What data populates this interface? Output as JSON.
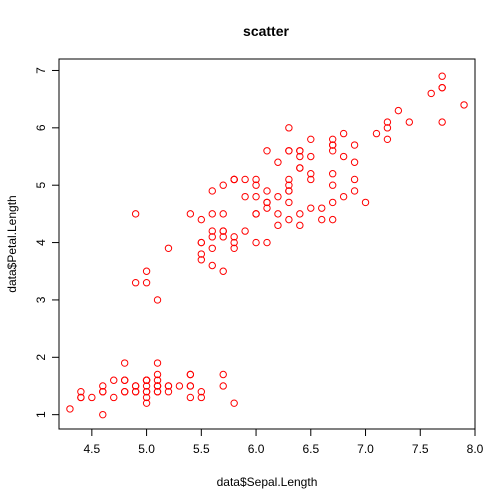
{
  "chart_data": {
    "type": "scatter",
    "title": "scatter",
    "xlabel": "data$Sepal.Length",
    "ylabel": "data$Petal.Length",
    "xlim": [
      4.2,
      8.0
    ],
    "ylim": [
      0.75,
      7.2
    ],
    "xticks": [
      4.5,
      5.0,
      5.5,
      6.0,
      6.5,
      7.0,
      7.5,
      8.0
    ],
    "xtick_labels": [
      "4.5",
      "5.0",
      "5.5",
      "6.0",
      "6.5",
      "7.0",
      "7.5",
      "8.0"
    ],
    "yticks": [
      1,
      2,
      3,
      4,
      5,
      6,
      7
    ],
    "ytick_labels": [
      "1",
      "2",
      "3",
      "4",
      "5",
      "6",
      "7"
    ],
    "grid": false,
    "legend": "none",
    "point_color": "#ff0000",
    "series": [
      {
        "x": [
          5.1,
          4.9,
          4.7,
          4.6,
          5.0,
          5.4,
          4.6,
          5.0,
          4.4,
          4.9,
          5.4,
          4.8,
          4.8,
          4.3,
          5.8,
          5.7,
          5.4,
          5.1,
          5.7,
          5.1,
          5.4,
          5.1,
          4.6,
          5.1,
          4.8,
          5.0,
          5.0,
          5.2,
          5.2,
          4.7,
          4.8,
          5.4,
          5.2,
          5.5,
          4.9,
          5.0,
          5.5,
          4.9,
          4.4,
          5.1,
          5.0,
          4.5,
          4.4,
          5.0,
          5.1,
          4.8,
          5.1,
          4.6,
          5.3,
          5.0,
          7.0,
          6.4,
          6.9,
          5.5,
          6.5,
          5.7,
          6.3,
          4.9,
          6.6,
          5.2,
          5.0,
          5.9,
          6.0,
          6.1,
          5.6,
          6.7,
          5.6,
          5.8,
          6.2,
          5.6,
          5.9,
          6.1,
          6.3,
          6.1,
          6.4,
          6.6,
          6.8,
          6.7,
          6.0,
          5.7,
          5.5,
          5.5,
          5.8,
          6.0,
          5.4,
          6.0,
          6.7,
          6.3,
          5.6,
          5.5,
          5.5,
          6.1,
          5.8,
          5.0,
          5.6,
          5.7,
          5.7,
          6.2,
          5.1,
          5.7,
          6.3,
          5.8,
          7.1,
          6.3,
          6.5,
          7.6,
          4.9,
          7.3,
          6.7,
          7.2,
          6.5,
          6.4,
          6.8,
          5.7,
          5.8,
          6.4,
          6.5,
          7.7,
          7.7,
          6.0,
          6.9,
          5.6,
          7.7,
          6.3,
          6.7,
          7.2,
          6.2,
          6.1,
          6.4,
          7.2,
          7.4,
          7.9,
          6.4,
          6.3,
          6.1,
          7.7,
          6.3,
          6.4,
          6.0,
          6.9,
          6.7,
          6.9,
          5.8,
          6.8,
          6.7,
          6.7,
          6.3,
          6.5,
          6.2,
          5.9
        ],
        "y": [
          1.4,
          1.4,
          1.3,
          1.5,
          1.4,
          1.7,
          1.4,
          1.5,
          1.4,
          1.5,
          1.5,
          1.6,
          1.4,
          1.1,
          1.2,
          1.5,
          1.3,
          1.4,
          1.7,
          1.5,
          1.7,
          1.5,
          1.0,
          1.7,
          1.9,
          1.6,
          1.6,
          1.5,
          1.4,
          1.6,
          1.6,
          1.5,
          1.5,
          1.4,
          1.5,
          1.2,
          1.3,
          1.4,
          1.3,
          1.5,
          1.3,
          1.3,
          1.3,
          1.6,
          1.9,
          1.4,
          1.6,
          1.4,
          1.5,
          1.4,
          4.7,
          4.5,
          4.9,
          4.0,
          4.6,
          4.5,
          4.7,
          3.3,
          4.6,
          3.9,
          3.5,
          4.2,
          4.0,
          4.7,
          3.6,
          4.4,
          4.5,
          4.1,
          4.5,
          3.9,
          4.8,
          4.0,
          4.9,
          4.7,
          4.3,
          4.4,
          4.8,
          5.0,
          4.5,
          3.5,
          3.8,
          3.7,
          3.9,
          5.1,
          4.5,
          4.5,
          4.7,
          4.4,
          4.1,
          4.0,
          4.4,
          4.6,
          4.0,
          3.3,
          4.2,
          4.2,
          4.2,
          4.3,
          3.0,
          4.1,
          6.0,
          5.1,
          5.9,
          5.6,
          5.8,
          6.6,
          4.5,
          6.3,
          5.8,
          6.1,
          5.1,
          5.3,
          5.5,
          5.0,
          5.1,
          5.3,
          5.5,
          6.7,
          6.9,
          5.0,
          5.7,
          4.9,
          6.7,
          4.9,
          5.7,
          6.0,
          4.8,
          4.9,
          5.6,
          5.8,
          6.1,
          6.4,
          5.6,
          5.1,
          5.6,
          6.1,
          5.6,
          5.5,
          4.8,
          5.4,
          5.6,
          5.1,
          5.1,
          5.9,
          5.7,
          5.2,
          5.0,
          5.2,
          5.4,
          5.1
        ]
      }
    ]
  }
}
